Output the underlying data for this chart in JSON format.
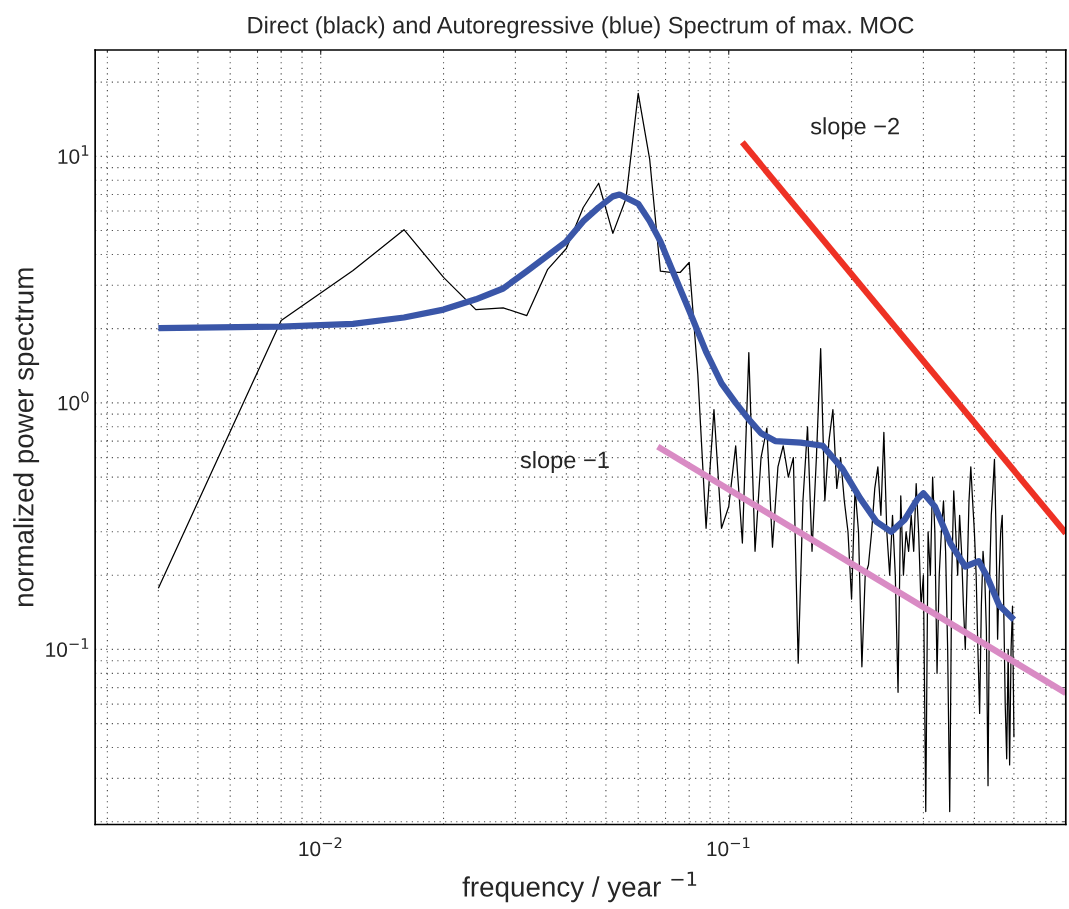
{
  "chart_data": {
    "type": "line",
    "title": "Direct (black) and Autoregressive (blue) Spectrum of max. MOC",
    "xlabel": "frequency / year $^{−1}$",
    "ylabel": "normalized power spectrum",
    "log": "xy",
    "grid": true,
    "marker": "none",
    "line_style": "solid",
    "xlim": [
      0.0028,
      0.67
    ],
    "ylim": [
      0.0195,
      27
    ],
    "xticks": [
      {
        "value": 0.01,
        "label": "10$^{−2}$"
      },
      {
        "value": 0.1,
        "label": "10$^{−1}$"
      }
    ],
    "yticks": [
      {
        "value": 0.1,
        "label": "10$^{−1}$"
      },
      {
        "value": 1,
        "label": "10$^{0}$"
      },
      {
        "value": 10,
        "label": "10$^{1}$"
      }
    ],
    "series": [
      {
        "color": "#000000",
        "x": [
          0.004,
          0.008,
          0.012,
          0.016,
          0.02,
          0.024,
          0.028,
          0.032,
          0.036,
          0.04,
          0.044,
          0.048,
          0.052,
          0.056,
          0.06,
          0.064,
          0.068,
          0.072,
          0.076,
          0.08,
          0.084,
          0.088,
          0.092,
          0.096,
          0.1,
          0.104,
          0.108,
          0.112,
          0.116,
          0.12,
          0.124,
          0.128,
          0.132,
          0.136,
          0.14,
          0.144,
          0.148,
          0.152,
          0.156,
          0.16,
          0.164,
          0.168,
          0.172,
          0.176,
          0.18,
          0.184,
          0.188,
          0.192,
          0.196,
          0.2,
          0.204,
          0.208,
          0.212,
          0.216,
          0.22,
          0.224,
          0.228,
          0.232,
          0.236,
          0.24,
          0.244,
          0.248,
          0.252,
          0.256,
          0.26,
          0.264,
          0.268,
          0.272,
          0.276,
          0.28,
          0.284,
          0.288,
          0.292,
          0.296,
          0.3,
          0.304,
          0.308,
          0.312,
          0.316,
          0.32,
          0.324,
          0.328,
          0.332,
          0.336,
          0.34,
          0.344,
          0.348,
          0.352,
          0.356,
          0.36,
          0.364,
          0.368,
          0.372,
          0.376,
          0.38,
          0.384,
          0.388,
          0.392,
          0.396,
          0.4,
          0.404,
          0.408,
          0.412,
          0.416,
          0.42,
          0.424,
          0.428,
          0.432,
          0.436,
          0.44,
          0.444,
          0.448,
          0.452,
          0.456,
          0.46,
          0.464,
          0.468,
          0.472,
          0.476,
          0.48,
          0.484,
          0.488,
          0.492,
          0.496,
          0.5
        ],
        "values": [
          0.177,
          2.16,
          3.44,
          5.04,
          3.23,
          2.39,
          2.43,
          2.26,
          3.48,
          4.23,
          6.2,
          7.78,
          4.87,
          6.75,
          18.0,
          9.75,
          3.42,
          3.38,
          3.38,
          3.71,
          1.3,
          0.31,
          0.94,
          0.31,
          0.38,
          0.67,
          0.27,
          1.6,
          0.25,
          0.6,
          0.79,
          0.26,
          0.55,
          0.67,
          0.5,
          0.6,
          0.088,
          0.4,
          0.8,
          0.25,
          0.6,
          1.66,
          0.4,
          0.7,
          0.94,
          0.45,
          0.6,
          0.4,
          0.3,
          0.16,
          0.45,
          0.3,
          0.085,
          0.2,
          0.22,
          0.3,
          0.45,
          0.55,
          0.35,
          0.76,
          0.3,
          0.2,
          0.35,
          0.2,
          0.067,
          0.42,
          0.2,
          0.3,
          0.25,
          0.35,
          0.25,
          0.47,
          0.3,
          0.15,
          0.2,
          0.022,
          0.3,
          0.2,
          0.5,
          0.3,
          0.08,
          0.2,
          0.3,
          0.4,
          0.25,
          0.1,
          0.022,
          0.2,
          0.44,
          0.3,
          0.2,
          0.35,
          0.25,
          0.15,
          0.1,
          0.2,
          0.4,
          0.55,
          0.4,
          0.3,
          0.2,
          0.1,
          0.055,
          0.15,
          0.25,
          0.2,
          0.12,
          0.028,
          0.2,
          0.35,
          0.45,
          0.59,
          0.3,
          0.11,
          0.2,
          0.3,
          0.35,
          0.15,
          0.06,
          0.036,
          0.1,
          0.034,
          0.1,
          0.15,
          0.044
        ]
      },
      {
        "color": "#3a56a8",
        "x": [
          0.004,
          0.008,
          0.012,
          0.016,
          0.02,
          0.024,
          0.028,
          0.032,
          0.036,
          0.04,
          0.044,
          0.048,
          0.052,
          0.054,
          0.06,
          0.064,
          0.068,
          0.072,
          0.08,
          0.088,
          0.096,
          0.104,
          0.112,
          0.12,
          0.13,
          0.15,
          0.17,
          0.19,
          0.21,
          0.23,
          0.25,
          0.27,
          0.29,
          0.3,
          0.32,
          0.35,
          0.38,
          0.41,
          0.43,
          0.46,
          0.5
        ],
        "values": [
          2.01,
          2.04,
          2.09,
          2.22,
          2.39,
          2.63,
          2.91,
          3.42,
          3.96,
          4.52,
          5.46,
          6.21,
          6.88,
          7.0,
          6.42,
          5.46,
          4.52,
          3.59,
          2.37,
          1.61,
          1.2,
          1.0,
          0.857,
          0.753,
          0.7,
          0.69,
          0.67,
          0.54,
          0.41,
          0.33,
          0.3,
          0.336,
          0.407,
          0.43,
          0.38,
          0.268,
          0.217,
          0.228,
          0.197,
          0.151,
          0.132
        ]
      },
      {
        "color": "#ee3124",
        "x": [
          0.108,
          0.67
        ],
        "values": [
          11.4,
          0.296
        ]
      },
      {
        "color": "#d98bc4",
        "x": [
          0.067,
          0.67
        ],
        "values": [
          0.665,
          0.0665
        ]
      }
    ],
    "annotations": [
      "slope −2",
      "slope −1"
    ]
  }
}
